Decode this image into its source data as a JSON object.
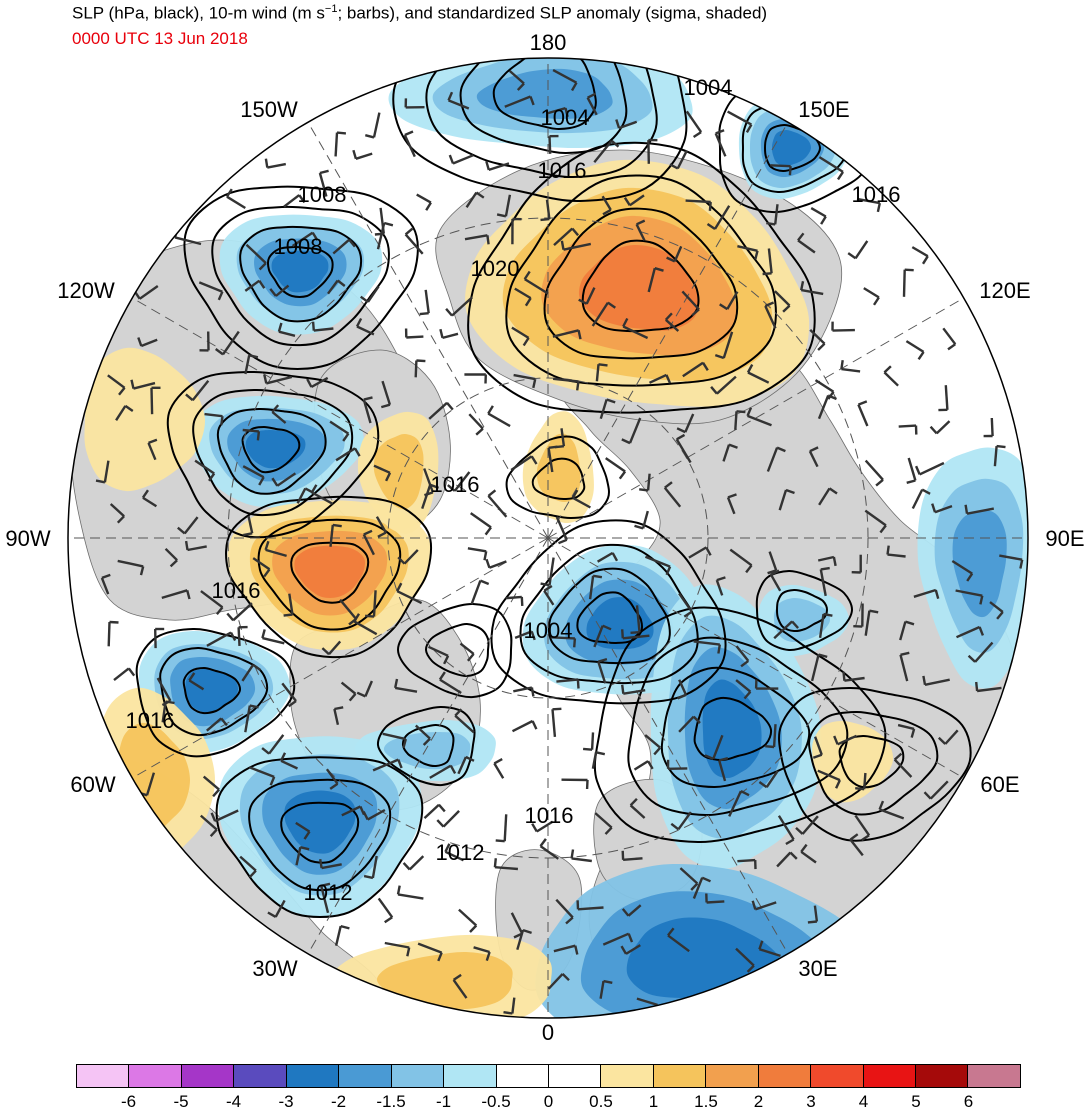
{
  "header": {
    "title_main": "SLP (hPa, black), 10-m wind (m s",
    "title_sup": "−1",
    "title_rest": "; barbs), and standardized SLP anomaly (sigma, shaded)",
    "subtitle": "0000 UTC 13 Jun 2018",
    "subtitle_color": "#e8000b"
  },
  "map": {
    "projection": "north-polar-stereographic",
    "center": "North Pole",
    "longitude_labels": [
      "180",
      "150E",
      "120E",
      "90E",
      "60E",
      "30E",
      "0",
      "30W",
      "60W",
      "90W",
      "120W",
      "150W"
    ],
    "isobar_labels": [
      "1004",
      "1004",
      "1016",
      "1008",
      "1016",
      "1008",
      "1020",
      "1016",
      "1016",
      "1004",
      "1016",
      "1016",
      "1012",
      "1012"
    ],
    "land_color": "#d3d3d3",
    "isobar_color": "#000000"
  },
  "colorbar": {
    "colors": [
      "#f5c4f5",
      "#dc78e6",
      "#a536c8",
      "#5a4bbe",
      "#1f78c1",
      "#4a9ad4",
      "#82c3e6",
      "#b0e6f4",
      "#ffffff",
      "#ffffff",
      "#fbe5a0",
      "#f5c45c",
      "#f2a04e",
      "#f07c3c",
      "#f04a2c",
      "#e81414",
      "#a50a0a",
      "#c87890"
    ],
    "tick_labels": [
      "-6",
      "-5",
      "-4",
      "-3",
      "-2",
      "-1.5",
      "-1",
      "-0.5",
      "0",
      "0.5",
      "1",
      "1.5",
      "2",
      "3",
      "4",
      "5",
      "6"
    ]
  }
}
